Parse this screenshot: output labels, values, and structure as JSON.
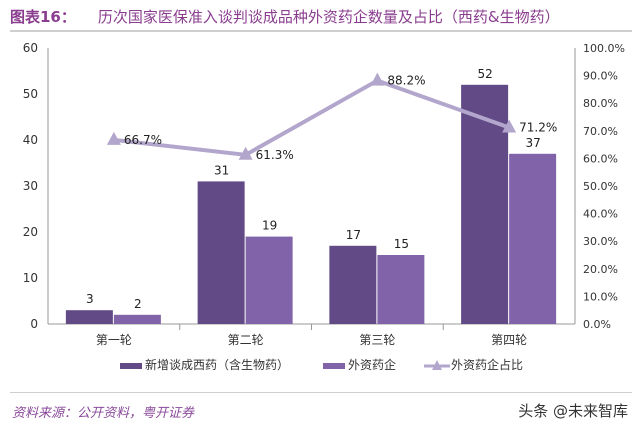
{
  "title_prefix": "图表16：",
  "title": "历次国家医保准入谈判谈成品种外资药企数量及占比（西药&生物药）",
  "source": "资料来源：公开资料，粤开证券",
  "watermark": "头条 @未来智库",
  "chart_data": {
    "type": "bar",
    "categories": [
      "第一轮",
      "第二轮",
      "第三轮",
      "第四轮"
    ],
    "series": [
      {
        "name": "新增谈成西药（含生物药）",
        "type": "bar",
        "axis": "left",
        "values": [
          3,
          31,
          17,
          52
        ],
        "color": "#614a85"
      },
      {
        "name": "外资药企",
        "type": "bar",
        "axis": "left",
        "values": [
          2,
          19,
          15,
          37
        ],
        "color": "#8063a8"
      },
      {
        "name": "外资药企占比",
        "type": "line",
        "axis": "right",
        "values": [
          66.7,
          61.3,
          88.2,
          71.2
        ],
        "labels": [
          "66.7%",
          "61.3%",
          "88.2%",
          "71.2%"
        ],
        "color": "#b3a6cc"
      }
    ],
    "ylim": [
      0,
      60
    ],
    "yticks": [
      "0",
      "10",
      "20",
      "30",
      "40",
      "50",
      "60"
    ],
    "y2lim": [
      0,
      100
    ],
    "y2ticks": [
      "0.0%",
      "10.0%",
      "20.0%",
      "30.0%",
      "40.0%",
      "50.0%",
      "60.0%",
      "70.0%",
      "80.0%",
      "90.0%",
      "100.0%"
    ],
    "legend": "bottom",
    "grid": false
  }
}
